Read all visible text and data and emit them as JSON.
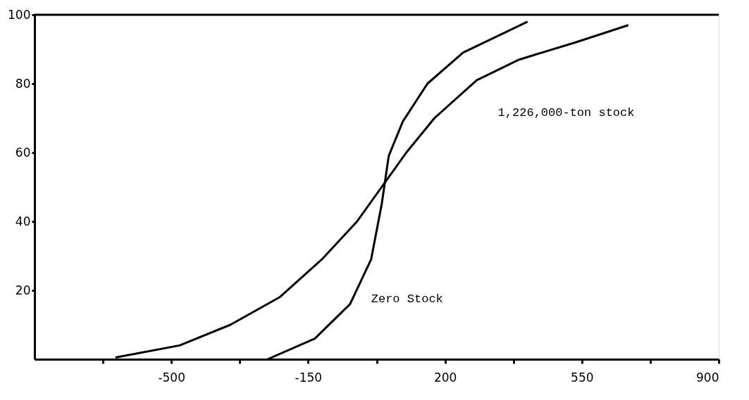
{
  "chart_data": {
    "type": "line",
    "xlim": [
      -850,
      900
    ],
    "ylim": [
      0,
      100
    ],
    "xticks": [
      {
        "value": -675,
        "label": null
      },
      -500,
      {
        "value": -325,
        "label": null
      },
      -150,
      {
        "value": 25,
        "label": null
      },
      200,
      {
        "value": 375,
        "label": null
      },
      550,
      {
        "value": 725,
        "label": null
      },
      900
    ],
    "yticks": [
      20,
      40,
      60,
      80,
      100
    ],
    "grid": false,
    "marker": "none",
    "line_style": "solid",
    "series": [
      {
        "name": "1,226,000-ton stock",
        "color": "#000000",
        "x": [
          -643,
          -479,
          -349,
          -223,
          -115,
          -25,
          38,
          101,
          173,
          281,
          390,
          534,
          669
        ],
        "values": [
          0.5,
          4,
          10,
          18,
          29,
          40,
          50,
          60,
          70,
          81,
          87,
          92,
          97
        ]
      },
      {
        "name": "Zero Stock",
        "color": "#000000",
        "x": [
          -254,
          -133,
          -43,
          11,
          38,
          56,
          92,
          155,
          246,
          411
        ],
        "values": [
          0,
          6,
          16,
          29,
          45,
          59,
          69,
          80,
          89,
          98
        ]
      }
    ]
  }
}
